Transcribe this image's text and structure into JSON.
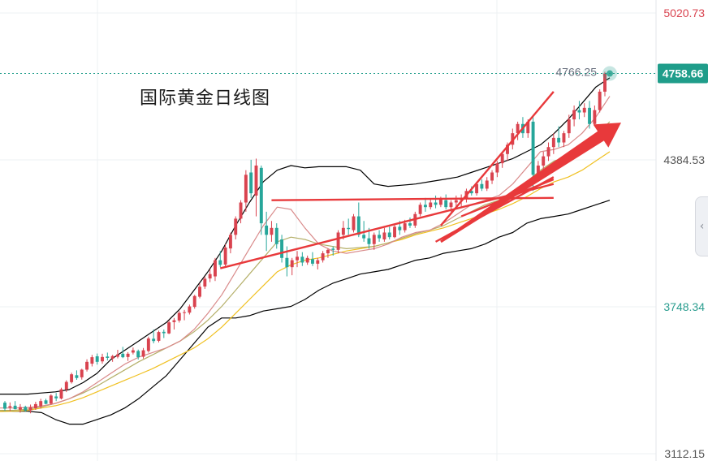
{
  "title": "国际黄金日线图",
  "chart_data": {
    "type": "candlestick",
    "price_axis_labels": [
      "5020.73",
      "4384.53",
      "3748.34",
      "3112.15"
    ],
    "current_price": "4758.66",
    "high_marker": "4766.25",
    "ylim": [
      3112.15,
      5020.73
    ],
    "grid": true,
    "colors": {
      "up": "#d9434f",
      "down": "#26a69a",
      "upper_band": "#000000",
      "ma_short": "#d98a8a",
      "ma_mid": "#b5b06a",
      "ma_long": "#f0c020",
      "trendline": "#e8393b",
      "current_price": "#1f9d8a"
    },
    "candles": [
      {
        "o": 3333,
        "h": 3340,
        "l": 3297,
        "c": 3307
      },
      {
        "o": 3312,
        "h": 3334,
        "l": 3296,
        "c": 3318
      },
      {
        "o": 3320,
        "h": 3340,
        "l": 3304,
        "c": 3305
      },
      {
        "o": 3303,
        "h": 3327,
        "l": 3290,
        "c": 3314
      },
      {
        "o": 3315,
        "h": 3320,
        "l": 3294,
        "c": 3299
      },
      {
        "o": 3300,
        "h": 3325,
        "l": 3287,
        "c": 3313
      },
      {
        "o": 3309,
        "h": 3337,
        "l": 3302,
        "c": 3327
      },
      {
        "o": 3318,
        "h": 3350,
        "l": 3308,
        "c": 3340
      },
      {
        "o": 3343,
        "h": 3350,
        "l": 3326,
        "c": 3328
      },
      {
        "o": 3329,
        "h": 3370,
        "l": 3324,
        "c": 3364
      },
      {
        "o": 3360,
        "h": 3375,
        "l": 3340,
        "c": 3352
      },
      {
        "o": 3351,
        "h": 3398,
        "l": 3347,
        "c": 3391
      },
      {
        "o": 3390,
        "h": 3430,
        "l": 3379,
        "c": 3423
      },
      {
        "o": 3422,
        "h": 3463,
        "l": 3416,
        "c": 3456
      },
      {
        "o": 3452,
        "h": 3473,
        "l": 3432,
        "c": 3440
      },
      {
        "o": 3443,
        "h": 3480,
        "l": 3433,
        "c": 3476
      },
      {
        "o": 3476,
        "h": 3521,
        "l": 3468,
        "c": 3510
      },
      {
        "o": 3502,
        "h": 3540,
        "l": 3490,
        "c": 3530
      },
      {
        "o": 3534,
        "h": 3546,
        "l": 3498,
        "c": 3510
      },
      {
        "o": 3512,
        "h": 3545,
        "l": 3502,
        "c": 3531
      },
      {
        "o": 3533,
        "h": 3550,
        "l": 3516,
        "c": 3527
      },
      {
        "o": 3524,
        "h": 3540,
        "l": 3510,
        "c": 3535
      },
      {
        "o": 3532,
        "h": 3562,
        "l": 3525,
        "c": 3542
      },
      {
        "o": 3545,
        "h": 3575,
        "l": 3526,
        "c": 3530
      },
      {
        "o": 3531,
        "h": 3552,
        "l": 3514,
        "c": 3545
      },
      {
        "o": 3550,
        "h": 3572,
        "l": 3542,
        "c": 3560
      },
      {
        "o": 3557,
        "h": 3563,
        "l": 3520,
        "c": 3530
      },
      {
        "o": 3532,
        "h": 3570,
        "l": 3524,
        "c": 3560
      },
      {
        "o": 3557,
        "h": 3619,
        "l": 3550,
        "c": 3611
      },
      {
        "o": 3610,
        "h": 3650,
        "l": 3590,
        "c": 3600
      },
      {
        "o": 3601,
        "h": 3645,
        "l": 3594,
        "c": 3639
      },
      {
        "o": 3640,
        "h": 3650,
        "l": 3613,
        "c": 3634
      },
      {
        "o": 3633,
        "h": 3690,
        "l": 3630,
        "c": 3681
      },
      {
        "o": 3682,
        "h": 3700,
        "l": 3650,
        "c": 3690
      },
      {
        "o": 3689,
        "h": 3730,
        "l": 3680,
        "c": 3722
      },
      {
        "o": 3722,
        "h": 3735,
        "l": 3690,
        "c": 3725
      },
      {
        "o": 3723,
        "h": 3758,
        "l": 3715,
        "c": 3750
      },
      {
        "o": 3748,
        "h": 3800,
        "l": 3740,
        "c": 3795
      },
      {
        "o": 3792,
        "h": 3850,
        "l": 3785,
        "c": 3835
      },
      {
        "o": 3836,
        "h": 3880,
        "l": 3826,
        "c": 3870
      },
      {
        "o": 3871,
        "h": 3909,
        "l": 3855,
        "c": 3890
      },
      {
        "o": 3880,
        "h": 3960,
        "l": 3860,
        "c": 3950
      },
      {
        "o": 3950,
        "h": 3990,
        "l": 3920,
        "c": 3930
      },
      {
        "o": 3931,
        "h": 4020,
        "l": 3920,
        "c": 4005
      },
      {
        "o": 4001,
        "h": 4070,
        "l": 3980,
        "c": 4060
      },
      {
        "o": 4060,
        "h": 4140,
        "l": 4040,
        "c": 4130
      },
      {
        "o": 4130,
        "h": 4210,
        "l": 4110,
        "c": 4200
      },
      {
        "o": 4200,
        "h": 4340,
        "l": 4160,
        "c": 4320
      },
      {
        "o": 4330,
        "h": 4385,
        "l": 4220,
        "c": 4240
      },
      {
        "o": 4230,
        "h": 4390,
        "l": 4140,
        "c": 4360
      },
      {
        "o": 4350,
        "h": 4360,
        "l": 4060,
        "c": 4110
      },
      {
        "o": 4100,
        "h": 4160,
        "l": 3990,
        "c": 4060
      },
      {
        "o": 4060,
        "h": 4120,
        "l": 4030,
        "c": 4090
      },
      {
        "o": 4090,
        "h": 4110,
        "l": 4000,
        "c": 4020
      },
      {
        "o": 4040,
        "h": 4060,
        "l": 3940,
        "c": 3960
      },
      {
        "o": 3960,
        "h": 4010,
        "l": 3880,
        "c": 3920
      },
      {
        "o": 3920,
        "h": 3960,
        "l": 3885,
        "c": 3950
      },
      {
        "o": 3950,
        "h": 3990,
        "l": 3920,
        "c": 3965
      },
      {
        "o": 3965,
        "h": 3985,
        "l": 3925,
        "c": 3940
      },
      {
        "o": 3940,
        "h": 3970,
        "l": 3930,
        "c": 3960
      },
      {
        "o": 3955,
        "h": 3985,
        "l": 3925,
        "c": 3935
      },
      {
        "o": 3935,
        "h": 3960,
        "l": 3910,
        "c": 3950
      },
      {
        "o": 3950,
        "h": 3990,
        "l": 3940,
        "c": 3980
      },
      {
        "o": 3980,
        "h": 4000,
        "l": 3960,
        "c": 3995
      },
      {
        "o": 4000,
        "h": 4010,
        "l": 3970,
        "c": 3995
      },
      {
        "o": 3995,
        "h": 4080,
        "l": 3980,
        "c": 4070
      },
      {
        "o": 4060,
        "h": 4120,
        "l": 4040,
        "c": 4090
      },
      {
        "o": 4090,
        "h": 4130,
        "l": 4060,
        "c": 4085
      },
      {
        "o": 4080,
        "h": 4150,
        "l": 4070,
        "c": 4140
      },
      {
        "o": 4140,
        "h": 4200,
        "l": 4050,
        "c": 4060
      },
      {
        "o": 4060,
        "h": 4120,
        "l": 4030,
        "c": 4045
      },
      {
        "o": 4045,
        "h": 4090,
        "l": 4000,
        "c": 4020
      },
      {
        "o": 4020,
        "h": 4070,
        "l": 3995,
        "c": 4060
      },
      {
        "o": 4060,
        "h": 4080,
        "l": 4030,
        "c": 4045
      },
      {
        "o": 4040,
        "h": 4090,
        "l": 4030,
        "c": 4070
      },
      {
        "o": 4070,
        "h": 4095,
        "l": 4040,
        "c": 4050
      },
      {
        "o": 4050,
        "h": 4105,
        "l": 4045,
        "c": 4095
      },
      {
        "o": 4095,
        "h": 4120,
        "l": 4060,
        "c": 4080
      },
      {
        "o": 4080,
        "h": 4125,
        "l": 4070,
        "c": 4110
      },
      {
        "o": 4110,
        "h": 4135,
        "l": 4090,
        "c": 4100
      },
      {
        "o": 4100,
        "h": 4160,
        "l": 4090,
        "c": 4150
      },
      {
        "o": 4150,
        "h": 4200,
        "l": 4140,
        "c": 4190
      },
      {
        "o": 4190,
        "h": 4220,
        "l": 4160,
        "c": 4180
      },
      {
        "o": 4180,
        "h": 4215,
        "l": 4170,
        "c": 4200
      },
      {
        "o": 4200,
        "h": 4230,
        "l": 4175,
        "c": 4190
      },
      {
        "o": 4190,
        "h": 4225,
        "l": 4180,
        "c": 4215
      },
      {
        "o": 4210,
        "h": 4235,
        "l": 4170,
        "c": 4180
      },
      {
        "o": 4180,
        "h": 4210,
        "l": 4160,
        "c": 4200
      },
      {
        "o": 4200,
        "h": 4230,
        "l": 4170,
        "c": 4210
      },
      {
        "o": 4210,
        "h": 4235,
        "l": 4180,
        "c": 4220
      },
      {
        "o": 4215,
        "h": 4260,
        "l": 4200,
        "c": 4250
      },
      {
        "o": 4250,
        "h": 4270,
        "l": 4230,
        "c": 4240
      },
      {
        "o": 4240,
        "h": 4290,
        "l": 4230,
        "c": 4280
      },
      {
        "o": 4280,
        "h": 4300,
        "l": 4250,
        "c": 4260
      },
      {
        "o": 4260,
        "h": 4310,
        "l": 4250,
        "c": 4295
      },
      {
        "o": 4295,
        "h": 4340,
        "l": 4280,
        "c": 4330
      },
      {
        "o": 4330,
        "h": 4380,
        "l": 4310,
        "c": 4370
      },
      {
        "o": 4370,
        "h": 4420,
        "l": 4350,
        "c": 4410
      },
      {
        "o": 4410,
        "h": 4460,
        "l": 4380,
        "c": 4450
      },
      {
        "o": 4450,
        "h": 4520,
        "l": 4430,
        "c": 4500
      },
      {
        "o": 4500,
        "h": 4550,
        "l": 4470,
        "c": 4540
      },
      {
        "o": 4540,
        "h": 4570,
        "l": 4480,
        "c": 4500
      },
      {
        "o": 4500,
        "h": 4560,
        "l": 4480,
        "c": 4550
      },
      {
        "o": 4550,
        "h": 4570,
        "l": 4250,
        "c": 4320
      },
      {
        "o": 4320,
        "h": 4380,
        "l": 4290,
        "c": 4360
      },
      {
        "o": 4360,
        "h": 4420,
        "l": 4340,
        "c": 4400
      },
      {
        "o": 4400,
        "h": 4460,
        "l": 4380,
        "c": 4440
      },
      {
        "o": 4440,
        "h": 4500,
        "l": 4410,
        "c": 4480
      },
      {
        "o": 4480,
        "h": 4530,
        "l": 4440,
        "c": 4460
      },
      {
        "o": 4460,
        "h": 4510,
        "l": 4440,
        "c": 4500
      },
      {
        "o": 4500,
        "h": 4580,
        "l": 4480,
        "c": 4560
      },
      {
        "o": 4560,
        "h": 4620,
        "l": 4530,
        "c": 4600
      },
      {
        "o": 4600,
        "h": 4640,
        "l": 4560,
        "c": 4590
      },
      {
        "o": 4590,
        "h": 4630,
        "l": 4570,
        "c": 4610
      },
      {
        "o": 4610,
        "h": 4640,
        "l": 4520,
        "c": 4540
      },
      {
        "o": 4540,
        "h": 4620,
        "l": 4530,
        "c": 4600
      },
      {
        "o": 4600,
        "h": 4690,
        "l": 4590,
        "c": 4680
      },
      {
        "o": 4680,
        "h": 4766.25,
        "l": 4660,
        "c": 4758.66
      }
    ],
    "overlays": {
      "upper_band": [
        3370,
        3370,
        3370,
        3375,
        3380,
        3390,
        3420,
        3460,
        3520,
        3560,
        3600,
        3640,
        3680,
        3740,
        3820,
        3900,
        3990,
        4100,
        4200,
        4290,
        4340,
        4360,
        4350,
        4355,
        4355,
        4355,
        4340,
        4280,
        4270,
        4275,
        4280,
        4290,
        4300,
        4310,
        4330,
        4350,
        4370,
        4390,
        4420,
        4450,
        4500,
        4560,
        4630,
        4700,
        4740
      ],
      "lower_band": [
        3300,
        3296,
        3296,
        3290,
        3260,
        3240,
        3240,
        3260,
        3280,
        3310,
        3350,
        3400,
        3450,
        3520,
        3590,
        3660,
        3700,
        3700,
        3710,
        3730,
        3740,
        3750,
        3780,
        3820,
        3850,
        3870,
        3890,
        3900,
        3910,
        3930,
        3950,
        3960,
        3980,
        3990,
        4000,
        4020,
        4050,
        4070,
        4110,
        4130,
        4140,
        4150,
        4170,
        4190,
        4210
      ],
      "ma_short": [
        3310,
        3310,
        3312,
        3318,
        3330,
        3350,
        3380,
        3420,
        3460,
        3500,
        3530,
        3550,
        3570,
        3600,
        3650,
        3720,
        3800,
        3900,
        4000,
        4100,
        4180,
        4170,
        4090,
        4020,
        3990,
        3980,
        3990,
        4000,
        4020,
        4050,
        4070,
        4080,
        4110,
        4150,
        4190,
        4210,
        4230,
        4280,
        4350,
        4420,
        4430,
        4450,
        4500,
        4570,
        4660
      ],
      "ma_mid": [
        3300,
        3300,
        3305,
        3315,
        3330,
        3350,
        3375,
        3405,
        3440,
        3475,
        3510,
        3540,
        3570,
        3600,
        3640,
        3690,
        3750,
        3820,
        3890,
        3960,
        4030,
        4050,
        4040,
        4020,
        4010,
        4000,
        4005,
        4010,
        4025,
        4045,
        4065,
        4080,
        4100,
        4130,
        4160,
        4190,
        4210,
        4240,
        4290,
        4340,
        4380,
        4400,
        4440,
        4490,
        4550
      ],
      "ma_long": [
        3295,
        3296,
        3300,
        3310,
        3320,
        3335,
        3355,
        3380,
        3405,
        3430,
        3455,
        3480,
        3510,
        3540,
        3570,
        3610,
        3660,
        3720,
        3780,
        3840,
        3900,
        3930,
        3950,
        3960,
        3975,
        3990,
        4000,
        4010,
        4025,
        4040,
        4060,
        4075,
        4090,
        4110,
        4130,
        4150,
        4170,
        4195,
        4225,
        4260,
        4290,
        4310,
        4340,
        4380,
        4420
      ]
    }
  }
}
